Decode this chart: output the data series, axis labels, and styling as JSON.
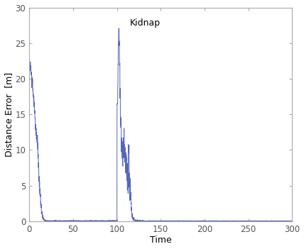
{
  "title": "",
  "xlabel": "Time",
  "ylabel": "Distance Error  [m]",
  "xlim": [
    0,
    300
  ],
  "ylim": [
    0,
    30
  ],
  "xticks": [
    0,
    50,
    100,
    150,
    200,
    250,
    300
  ],
  "yticks": [
    0,
    5,
    10,
    15,
    20,
    25,
    30
  ],
  "line_color": "#5566bb",
  "line_width": 0.7,
  "kidnap_annotation": "Kidnap",
  "kidnap_x": 115,
  "kidnap_y": 27.2,
  "background_color": "#ffffff",
  "spine_color": "#aaaaaa",
  "tick_color": "#555555",
  "figsize": [
    4.28,
    3.51
  ],
  "dpi": 100
}
